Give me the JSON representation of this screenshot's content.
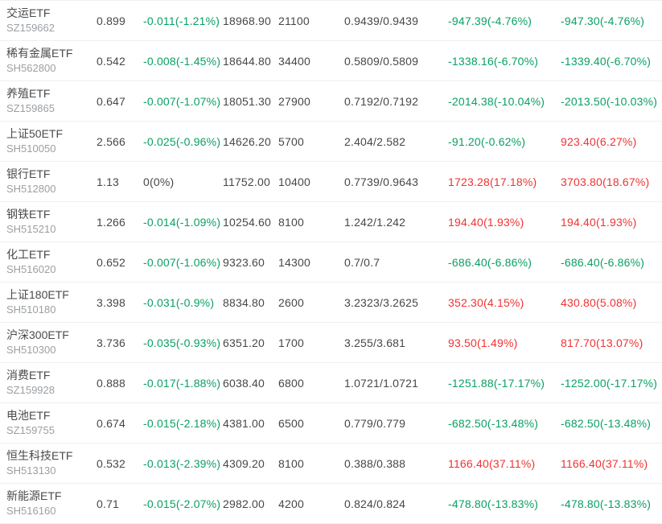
{
  "colors": {
    "up": "#f03232",
    "down": "#0aa064",
    "neutral": "#474747",
    "name_text": "#4b4b4b",
    "code_text": "#9b9fa3",
    "row_border": "#eef0f1",
    "background": "#ffffff"
  },
  "table": {
    "columns": [
      "name",
      "price",
      "change",
      "amount",
      "volume",
      "range",
      "value_a",
      "value_b"
    ],
    "rows": [
      {
        "name": "交运ETF",
        "code": "SZ159662",
        "price": "0.899",
        "change": "-0.011(-1.21%)",
        "change_dir": "down",
        "amount": "18968.90",
        "volume": "21100",
        "range": "0.9439/0.9439",
        "value_a": "-947.39(-4.76%)",
        "value_a_dir": "down",
        "value_b": "-947.30(-4.76%)",
        "value_b_dir": "down"
      },
      {
        "name": "稀有金属ETF",
        "code": "SH562800",
        "price": "0.542",
        "change": "-0.008(-1.45%)",
        "change_dir": "down",
        "amount": "18644.80",
        "volume": "34400",
        "range": "0.5809/0.5809",
        "value_a": "-1338.16(-6.70%)",
        "value_a_dir": "down",
        "value_b": "-1339.40(-6.70%)",
        "value_b_dir": "down"
      },
      {
        "name": "养殖ETF",
        "code": "SZ159865",
        "price": "0.647",
        "change": "-0.007(-1.07%)",
        "change_dir": "down",
        "amount": "18051.30",
        "volume": "27900",
        "range": "0.7192/0.7192",
        "value_a": "-2014.38(-10.04%)",
        "value_a_dir": "down",
        "value_b": "-2013.50(-10.03%)",
        "value_b_dir": "down"
      },
      {
        "name": "上证50ETF",
        "code": "SH510050",
        "price": "2.566",
        "change": "-0.025(-0.96%)",
        "change_dir": "down",
        "amount": "14626.20",
        "volume": "5700",
        "range": "2.404/2.582",
        "value_a": "-91.20(-0.62%)",
        "value_a_dir": "down",
        "value_b": "923.40(6.27%)",
        "value_b_dir": "up"
      },
      {
        "name": "银行ETF",
        "code": "SH512800",
        "price": "1.13",
        "change": "0(0%)",
        "change_dir": "neutral",
        "amount": "11752.00",
        "volume": "10400",
        "range": "0.7739/0.9643",
        "value_a": "1723.28(17.18%)",
        "value_a_dir": "up",
        "value_b": "3703.80(18.67%)",
        "value_b_dir": "up"
      },
      {
        "name": "钢铁ETF",
        "code": "SH515210",
        "price": "1.266",
        "change": "-0.014(-1.09%)",
        "change_dir": "down",
        "amount": "10254.60",
        "volume": "8100",
        "range": "1.242/1.242",
        "value_a": "194.40(1.93%)",
        "value_a_dir": "up",
        "value_b": "194.40(1.93%)",
        "value_b_dir": "up"
      },
      {
        "name": "化工ETF",
        "code": "SH516020",
        "price": "0.652",
        "change": "-0.007(-1.06%)",
        "change_dir": "down",
        "amount": "9323.60",
        "volume": "14300",
        "range": "0.7/0.7",
        "value_a": "-686.40(-6.86%)",
        "value_a_dir": "down",
        "value_b": "-686.40(-6.86%)",
        "value_b_dir": "down"
      },
      {
        "name": "上证180ETF",
        "code": "SH510180",
        "price": "3.398",
        "change": "-0.031(-0.9%)",
        "change_dir": "down",
        "amount": "8834.80",
        "volume": "2600",
        "range": "3.2323/3.2625",
        "value_a": "352.30(4.15%)",
        "value_a_dir": "up",
        "value_b": "430.80(5.08%)",
        "value_b_dir": "up"
      },
      {
        "name": "沪深300ETF",
        "code": "SH510300",
        "price": "3.736",
        "change": "-0.035(-0.93%)",
        "change_dir": "down",
        "amount": "6351.20",
        "volume": "1700",
        "range": "3.255/3.681",
        "value_a": "93.50(1.49%)",
        "value_a_dir": "up",
        "value_b": "817.70(13.07%)",
        "value_b_dir": "up"
      },
      {
        "name": "消费ETF",
        "code": "SZ159928",
        "price": "0.888",
        "change": "-0.017(-1.88%)",
        "change_dir": "down",
        "amount": "6038.40",
        "volume": "6800",
        "range": "1.0721/1.0721",
        "value_a": "-1251.88(-17.17%)",
        "value_a_dir": "down",
        "value_b": "-1252.00(-17.17%)",
        "value_b_dir": "down"
      },
      {
        "name": "电池ETF",
        "code": "SZ159755",
        "price": "0.674",
        "change": "-0.015(-2.18%)",
        "change_dir": "down",
        "amount": "4381.00",
        "volume": "6500",
        "range": "0.779/0.779",
        "value_a": "-682.50(-13.48%)",
        "value_a_dir": "down",
        "value_b": "-682.50(-13.48%)",
        "value_b_dir": "down"
      },
      {
        "name": "恒生科技ETF",
        "code": "SH513130",
        "price": "0.532",
        "change": "-0.013(-2.39%)",
        "change_dir": "down",
        "amount": "4309.20",
        "volume": "8100",
        "range": "0.388/0.388",
        "value_a": "1166.40(37.11%)",
        "value_a_dir": "up",
        "value_b": "1166.40(37.11%)",
        "value_b_dir": "up"
      },
      {
        "name": "新能源ETF",
        "code": "SH516160",
        "price": "0.71",
        "change": "-0.015(-2.07%)",
        "change_dir": "down",
        "amount": "2982.00",
        "volume": "4200",
        "range": "0.824/0.824",
        "value_a": "-478.80(-13.83%)",
        "value_a_dir": "down",
        "value_b": "-478.80(-13.83%)",
        "value_b_dir": "down"
      }
    ]
  }
}
